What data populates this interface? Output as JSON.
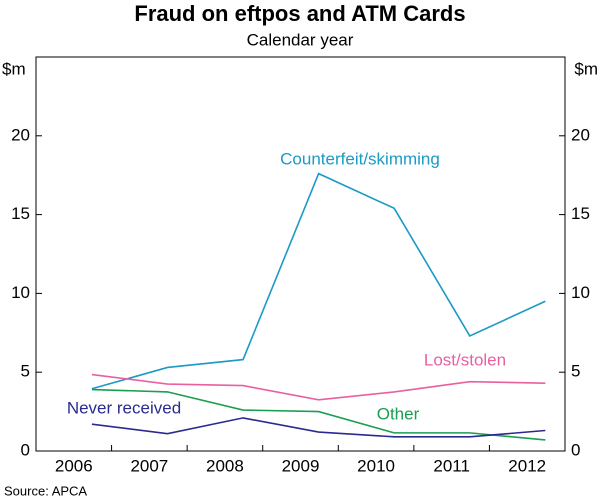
{
  "chart_data": {
    "type": "line",
    "title": "Fraud on eftpos and ATM Cards",
    "subtitle": "Calendar year",
    "y_label": "$m",
    "y2_label": "$m",
    "source": "Source: APCA",
    "categories": [
      "2006",
      "2007",
      "2008",
      "2009",
      "2010",
      "2011",
      "2012"
    ],
    "series": [
      {
        "name": "Counterfeit/skimming",
        "color": "#1a9ac6",
        "values": [
          3.95,
          5.3,
          5.8,
          17.6,
          15.4,
          7.3,
          9.5
        ]
      },
      {
        "name": "Lost/stolen",
        "color": "#e8619f",
        "values": [
          4.85,
          4.25,
          4.15,
          3.25,
          3.75,
          4.4,
          4.3
        ]
      },
      {
        "name": "Other",
        "color": "#1a9e50",
        "values": [
          3.9,
          3.75,
          2.6,
          2.5,
          1.15,
          1.15,
          0.7
        ]
      },
      {
        "name": "Never received",
        "color": "#2a2a90",
        "values": [
          1.7,
          1.1,
          2.1,
          1.2,
          0.9,
          0.9,
          1.3
        ]
      }
    ],
    "ylim": [
      0,
      25
    ],
    "yticks": [
      0,
      5,
      10,
      15,
      20
    ],
    "grid": false
  }
}
